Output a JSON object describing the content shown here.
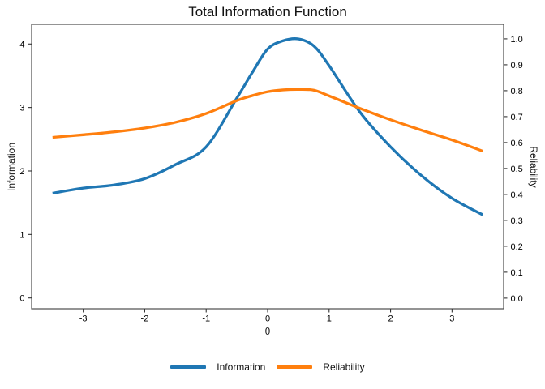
{
  "chart_data": {
    "type": "line",
    "title": "Total Information Function",
    "xlabel": "θ",
    "ylabel_left": "Information",
    "ylabel_right": "Reliability",
    "legend_position": "bottom",
    "grid": false,
    "background": "#ffffff",
    "panel_border_color": "#4d4d4d",
    "tick_color": "#333333",
    "xlim": [
      -3.84,
      3.84
    ],
    "ylim_left": [
      -0.17,
      4.31
    ],
    "ylim_right": [
      -0.041,
      1.056
    ],
    "x_ticks": {
      "values": [
        -3,
        -2,
        -1,
        0,
        1,
        2,
        3
      ],
      "labels": [
        "-3",
        "-2",
        "-1",
        "0",
        "1",
        "2",
        "3"
      ]
    },
    "y_ticks_left": {
      "values": [
        0,
        1,
        2,
        3,
        4
      ],
      "labels": [
        "0",
        "1",
        "2",
        "3",
        "4"
      ]
    },
    "y_ticks_right": {
      "values": [
        0,
        0.1,
        0.2,
        0.3,
        0.4,
        0.5,
        0.6,
        0.7,
        0.8,
        0.9,
        1.0
      ],
      "labels": [
        "0.0",
        "0.1",
        "0.2",
        "0.3",
        "0.4",
        "0.5",
        "0.6",
        "0.7",
        "0.8",
        "0.9",
        "1.0"
      ]
    },
    "x": [
      -3.5,
      -3.0,
      -2.5,
      -2.0,
      -1.5,
      -1.0,
      -0.5,
      -0.25,
      0.0,
      0.25,
      0.5,
      0.75,
      1.0,
      1.5,
      2.0,
      2.5,
      3.0,
      3.5
    ],
    "series": [
      {
        "name": "Information",
        "axis": "left",
        "color": "#1f77b4",
        "values": [
          1.65,
          1.73,
          1.78,
          1.88,
          2.1,
          2.38,
          3.15,
          3.55,
          3.92,
          4.05,
          4.08,
          3.97,
          3.66,
          2.93,
          2.38,
          1.93,
          1.57,
          1.31
        ]
      },
      {
        "name": "Reliability",
        "axis": "right",
        "color": "#ff7f0e",
        "values": [
          0.62,
          0.63,
          0.641,
          0.656,
          0.678,
          0.712,
          0.762,
          0.781,
          0.796,
          0.803,
          0.805,
          0.802,
          0.78,
          0.732,
          0.688,
          0.648,
          0.61,
          0.567
        ]
      }
    ],
    "annotations": {
      "information_peak": {
        "theta": 0.42,
        "value": 4.08
      },
      "reliability_peak": {
        "theta": 0.45,
        "value": 0.805
      }
    }
  }
}
